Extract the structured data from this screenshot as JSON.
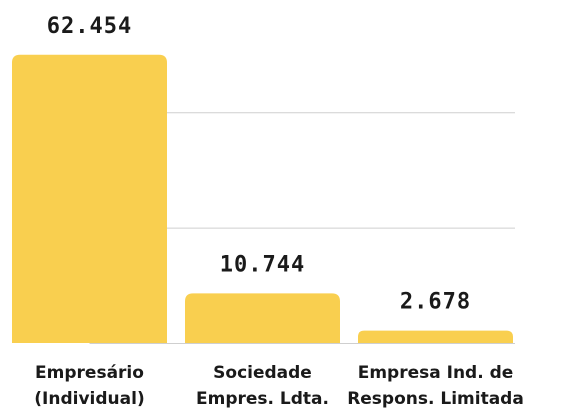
{
  "chart_data": {
    "type": "bar",
    "categories": [
      [
        "Empresário",
        "(Individual)"
      ],
      [
        "Sociedade",
        "Empres. Ldta."
      ],
      [
        "Empresa Ind. de",
        "Respons. Limitada"
      ]
    ],
    "values": [
      62454,
      10744,
      2678
    ],
    "value_labels": [
      "62.454",
      "10.744",
      "2.678"
    ],
    "color": "#f9cf4f",
    "ylim": [
      0,
      65000
    ],
    "yticks": [
      0,
      25000,
      50000
    ],
    "grid": true
  }
}
